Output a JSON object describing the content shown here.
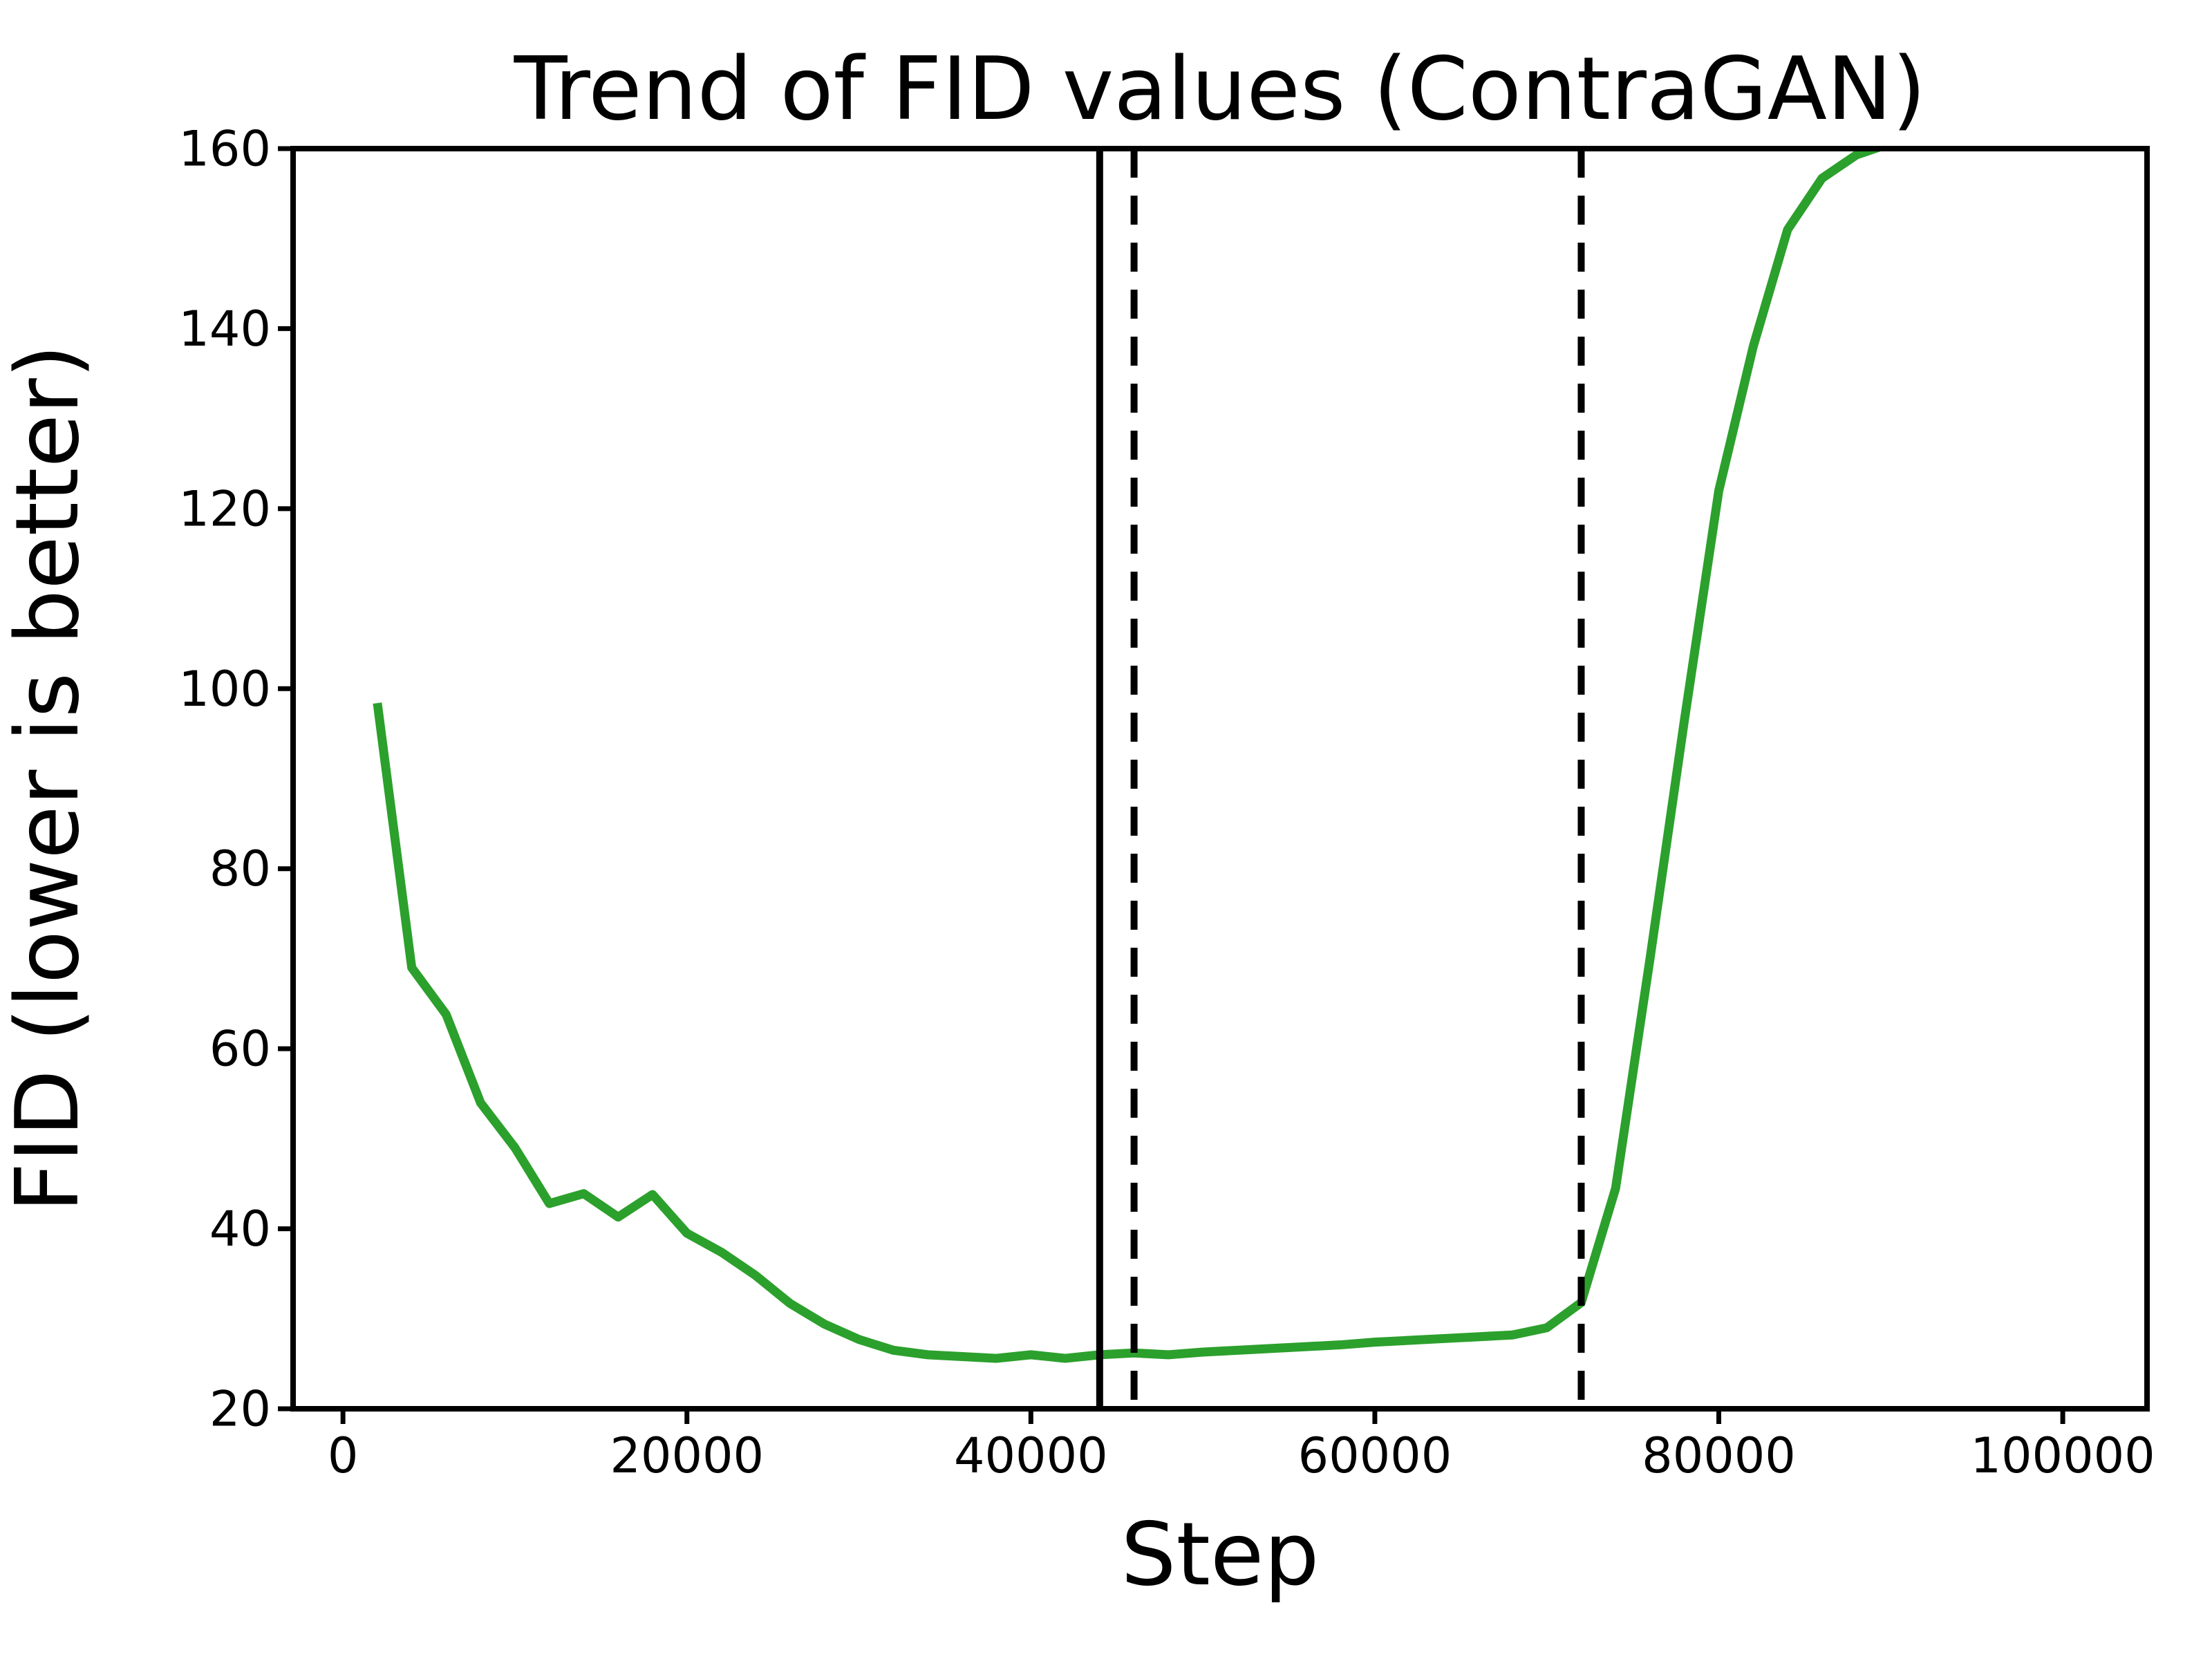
{
  "chart_data": {
    "type": "line",
    "title": "Trend of FID values (ContraGAN)",
    "xlabel": "Step",
    "ylabel": "FID (lower is better)",
    "xlim": [
      -2900,
      104900
    ],
    "ylim": [
      20,
      160
    ],
    "xticks": [
      0,
      20000,
      40000,
      60000,
      80000,
      100000
    ],
    "xtick_labels": [
      "0",
      "20000",
      "40000",
      "60000",
      "80000",
      "100000"
    ],
    "yticks": [
      20,
      40,
      60,
      80,
      100,
      120,
      140,
      160
    ],
    "ytick_labels": [
      "20",
      "40",
      "60",
      "80",
      "100",
      "120",
      "140",
      "160"
    ],
    "grid": false,
    "legend": null,
    "x": [
      2000,
      4000,
      6000,
      8000,
      10000,
      12000,
      14000,
      16000,
      18000,
      20000,
      22000,
      24000,
      26000,
      28000,
      30000,
      32000,
      34000,
      36000,
      38000,
      40000,
      42000,
      44000,
      46000,
      48000,
      50000,
      52000,
      54000,
      56000,
      58000,
      60000,
      62000,
      64000,
      66000,
      68000,
      70000,
      72000,
      74000,
      76000,
      78000,
      80000,
      82000,
      84000,
      86000,
      88000,
      90000
    ],
    "series": [
      {
        "name": "FID",
        "color": "#2ca02c",
        "values": [
          98.4,
          69.0,
          63.8,
          54.0,
          49.0,
          42.8,
          43.9,
          41.3,
          43.8,
          39.5,
          37.4,
          34.8,
          31.7,
          29.4,
          27.7,
          26.5,
          26.0,
          25.8,
          25.6,
          26.0,
          25.6,
          26.0,
          26.2,
          26.0,
          26.3,
          26.5,
          26.7,
          26.9,
          27.1,
          27.4,
          27.6,
          27.8,
          28.0,
          28.2,
          29.0,
          31.8,
          44.5,
          70.0,
          96.5,
          122.0,
          138.0,
          151.0,
          156.7,
          159.3,
          160.6
        ]
      }
    ],
    "vlines": [
      {
        "x": 44000,
        "style": "solid",
        "color": "#000000"
      },
      {
        "x": 46000,
        "style": "dashed",
        "color": "#000000"
      },
      {
        "x": 72000,
        "style": "dashed",
        "color": "#000000"
      }
    ],
    "colors": {
      "background": "#ffffff",
      "axis": "#000000"
    },
    "notes": "line clipped above y=160 near x=89500"
  }
}
